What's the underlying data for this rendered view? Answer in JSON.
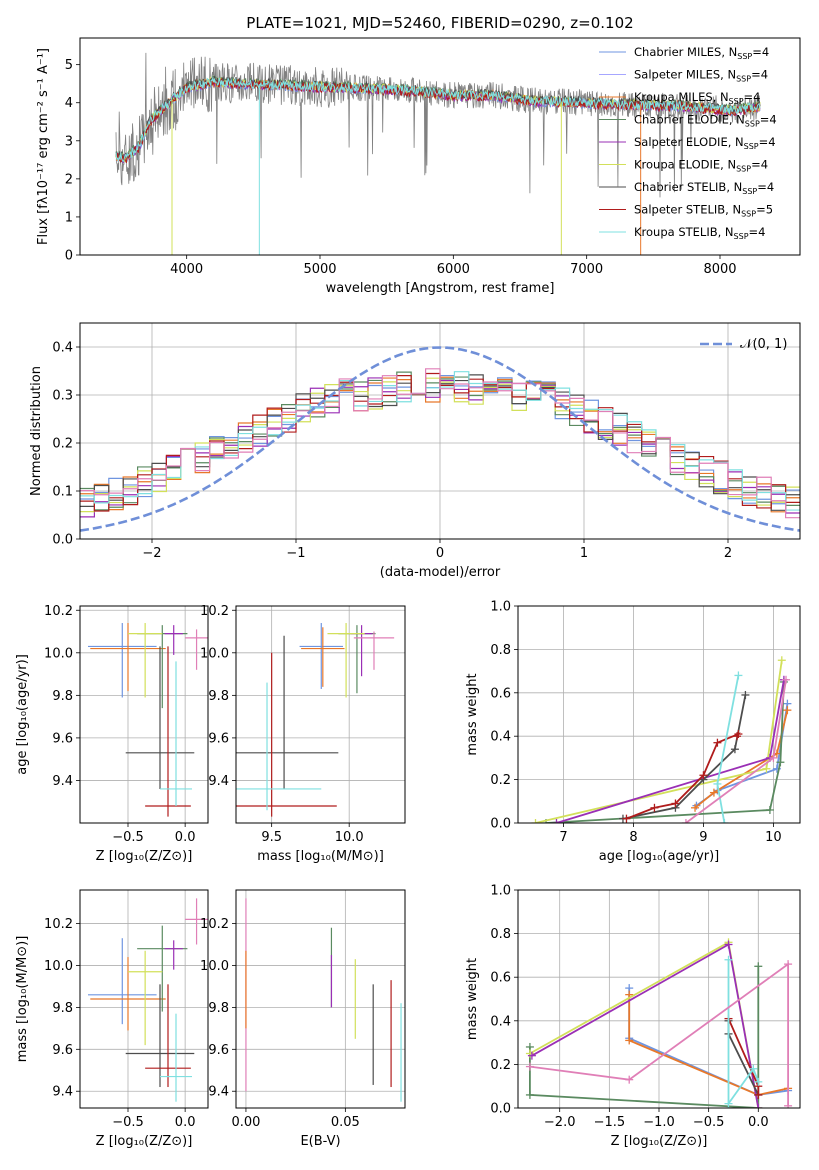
{
  "colors": {
    "Chabrier MILES": "#6f95e0",
    "Salpeter MILES": "#a6a6ff",
    "Kroupa MILES": "#e8782a",
    "Chabrier ELODIE": "#5a8a60",
    "Salpeter ELODIE": "#9a2fb5",
    "Kroupa ELODIE": "#d2e05a",
    "Chabrier STELIB": "#4d4d4d",
    "Salpeter STELIB": "#b01c1c",
    "Kroupa STELIB": "#7fe0e0",
    "pink": "#e07fb7",
    "gray": "#808080",
    "normal": "#6f8fd8"
  },
  "chart_data": [
    {
      "id": "spectrum",
      "type": "line",
      "title": "PLATE=1021, MJD=52460, FIBERID=0290, z=0.102",
      "xlabel": "wavelength [Angstrom, rest frame]",
      "ylabel": "Flux [fλ10⁻¹⁷ erg cm⁻² s⁻¹ A⁻¹]",
      "xlim": [
        3200,
        8600
      ],
      "ylim": [
        0,
        5.7
      ],
      "xticks": [
        4000,
        5000,
        6000,
        7000,
        8000
      ],
      "yticks": [
        0,
        1,
        2,
        3,
        4,
        5
      ],
      "legend_position": "right",
      "legend": [
        {
          "label": "Chabrier MILES, N",
          "sub": "SSP",
          "tail": "=4",
          "color_key": "Chabrier MILES"
        },
        {
          "label": "Salpeter MILES, N",
          "sub": "SSP",
          "tail": "=4",
          "color_key": "Salpeter MILES"
        },
        {
          "label": "Kroupa MILES, N",
          "sub": "SSP",
          "tail": "=4",
          "color_key": "Kroupa MILES"
        },
        {
          "label": "Chabrier ELODIE, N",
          "sub": "SSP",
          "tail": "=4",
          "color_key": "Chabrier ELODIE"
        },
        {
          "label": "Salpeter ELODIE, N",
          "sub": "SSP",
          "tail": "=4",
          "color_key": "Salpeter ELODIE"
        },
        {
          "label": "Kroupa ELODIE, N",
          "sub": "SSP",
          "tail": "=4",
          "color_key": "Kroupa ELODIE"
        },
        {
          "label": "Chabrier STELIB, N",
          "sub": "SSP",
          "tail": "=4",
          "color_key": "Chabrier STELIB"
        },
        {
          "label": "Salpeter STELIB, N",
          "sub": "SSP",
          "tail": "=5",
          "color_key": "Salpeter STELIB"
        },
        {
          "label": "Kroupa STELIB, N",
          "sub": "SSP",
          "tail": "=4",
          "color_key": "Kroupa STELIB"
        }
      ],
      "continuum": {
        "x": [
          3470,
          3550,
          3650,
          3720,
          3800,
          3900,
          4000,
          4200,
          4500,
          4800,
          5200,
          5600,
          6000,
          6300,
          6600,
          7000,
          7400,
          7800,
          8100,
          8300
        ],
        "y": [
          2.6,
          2.55,
          2.9,
          3.5,
          3.8,
          4.1,
          4.4,
          4.55,
          4.5,
          4.45,
          4.4,
          4.35,
          4.2,
          4.2,
          4.05,
          4.0,
          3.95,
          3.9,
          3.8,
          3.9
        ]
      },
      "data_wavelength_range": [
        3470,
        8300
      ]
    },
    {
      "id": "residuals",
      "type": "line",
      "xlabel": "(data-model)/error",
      "ylabel": "Normed distribution",
      "xlim": [
        -2.5,
        2.5
      ],
      "ylim": [
        0,
        0.45
      ],
      "xticks": [
        -2,
        -1,
        0,
        1,
        2
      ],
      "xticklabels": [
        "−2",
        "−1",
        "0",
        "1",
        "2"
      ],
      "yticks": [
        0.0,
        0.1,
        0.2,
        0.3,
        0.4
      ],
      "yticklabels": [
        "0.0",
        "0.1",
        "0.2",
        "0.3",
        "0.4"
      ],
      "legend": [
        {
          "label": "𝒩(0, 1)",
          "color_key": "normal",
          "style": "dashed"
        }
      ],
      "legend_position": "top-right",
      "bin_width": 0.1,
      "grid": true
    },
    {
      "id": "age-vs-Z",
      "type": "scatter",
      "xlabel": "Z [log₁₀(Z/Z⊙)]",
      "ylabel": "age  [log₁₀(age/yr)]",
      "xlim": [
        -0.92,
        0.2
      ],
      "ylim": [
        9.2,
        10.22
      ],
      "xticks": [
        -0.5,
        0.0
      ],
      "xticklabels": [
        "−0.5",
        "0.0"
      ],
      "yticks": [
        9.4,
        9.6,
        9.8,
        10.0,
        10.2
      ],
      "yticklabels": [
        "9.4",
        "9.6",
        "9.8",
        "10.0",
        "10.2"
      ],
      "grid": true,
      "points": [
        {
          "x": -0.55,
          "y": 10.03,
          "xerr": 0.3,
          "yerr": [
            0.24,
            0.11
          ],
          "color_key": "Chabrier MILES"
        },
        {
          "x": -0.5,
          "y": 10.02,
          "xerr": 0.33,
          "yerr": [
            0.2,
            0.12
          ],
          "color_key": "Kroupa MILES"
        },
        {
          "x": -0.2,
          "y": 10.09,
          "xerr": 0.22,
          "yerr": [
            0.35,
            0.04
          ],
          "color_key": "Chabrier ELODIE"
        },
        {
          "x": -0.1,
          "y": 10.09,
          "xerr": 0.08,
          "yerr": [
            0.1,
            0.04
          ],
          "color_key": "Salpeter ELODIE"
        },
        {
          "x": -0.35,
          "y": 10.09,
          "xerr": 0.15,
          "yerr": [
            0.3,
            0.05
          ],
          "color_key": "Kroupa ELODIE"
        },
        {
          "x": -0.22,
          "y": 9.53,
          "xerr": 0.3,
          "yerr": [
            0.17,
            0.5
          ],
          "color_key": "Chabrier STELIB"
        },
        {
          "x": -0.15,
          "y": 9.28,
          "xerr": 0.2,
          "yerr": [
            0.05,
            0.75
          ],
          "color_key": "Salpeter STELIB"
        },
        {
          "x": -0.08,
          "y": 9.36,
          "xerr": 0.14,
          "yerr": [
            0.08,
            0.6
          ],
          "color_key": "Kroupa STELIB"
        },
        {
          "x": 0.1,
          "y": 10.07,
          "xerr": 0.1,
          "yerr": [
            0.15,
            0.04
          ],
          "color_key": "pink"
        }
      ]
    },
    {
      "id": "age-vs-mass",
      "type": "scatter",
      "xlabel": "mass [log₁₀(M/M⊙)]",
      "ylabel": "",
      "xlim": [
        9.27,
        10.36
      ],
      "ylim": [
        9.2,
        10.22
      ],
      "xticks": [
        9.5,
        10.0
      ],
      "xticklabels": [
        "9.5",
        "10.0"
      ],
      "yticks": [
        9.4,
        9.6,
        9.8,
        10.0,
        10.2
      ],
      "yticklabels": [
        "9.4",
        "9.6",
        "9.8",
        "10.0",
        "10.2"
      ],
      "grid": true,
      "points": [
        {
          "x": 9.82,
          "y": 10.03,
          "xerr": 0.14,
          "yerr": [
            0.2,
            0.11
          ],
          "color_key": "Chabrier MILES"
        },
        {
          "x": 9.83,
          "y": 10.02,
          "xerr": 0.14,
          "yerr": [
            0.18,
            0.1
          ],
          "color_key": "Kroupa MILES"
        },
        {
          "x": 10.05,
          "y": 10.09,
          "xerr": 0.12,
          "yerr": [
            0.28,
            0.04
          ],
          "color_key": "Chabrier ELODIE"
        },
        {
          "x": 10.08,
          "y": 10.09,
          "xerr": 0.07,
          "yerr": [
            0.2,
            0.04
          ],
          "color_key": "Salpeter ELODIE"
        },
        {
          "x": 9.98,
          "y": 10.09,
          "xerr": 0.12,
          "yerr": [
            0.3,
            0.05
          ],
          "color_key": "Kroupa ELODIE"
        },
        {
          "x": 9.58,
          "y": 9.53,
          "xerr": 0.35,
          "yerr": [
            0.17,
            0.55
          ],
          "color_key": "Chabrier STELIB"
        },
        {
          "x": 9.5,
          "y": 9.28,
          "xerr": 0.42,
          "yerr": [
            0.05,
            0.72
          ],
          "color_key": "Salpeter STELIB"
        },
        {
          "x": 9.47,
          "y": 9.36,
          "xerr": 0.35,
          "yerr": [
            0.1,
            0.5
          ],
          "color_key": "Kroupa STELIB"
        },
        {
          "x": 10.16,
          "y": 10.07,
          "xerr": 0.13,
          "yerr": [
            0.15,
            0.03
          ],
          "color_key": "pink"
        }
      ]
    },
    {
      "id": "mass-weight-vs-age",
      "type": "line",
      "xlabel": "age  [log₁₀(age/yr)]",
      "ylabel": "mass weight",
      "xlim": [
        6.35,
        10.38
      ],
      "ylim": [
        0,
        1.0
      ],
      "xticks": [
        7,
        8,
        9,
        10
      ],
      "yticks": [
        0.0,
        0.2,
        0.4,
        0.6,
        0.8,
        1.0
      ],
      "yticklabels": [
        "0.0",
        "0.2",
        "0.4",
        "0.6",
        "0.8",
        "1.0"
      ],
      "grid": true,
      "series": [
        {
          "color_key": "Chabrier MILES",
          "x": [
            8.9,
            9.2,
            10.05,
            10.2
          ],
          "y": [
            0.08,
            0.15,
            0.25,
            0.55
          ]
        },
        {
          "color_key": "Kroupa MILES",
          "x": [
            8.88,
            9.15,
            10.05,
            10.2
          ],
          "y": [
            0.07,
            0.14,
            0.32,
            0.52
          ]
        },
        {
          "color_key": "Chabrier ELODIE",
          "x": [
            6.75,
            9.95,
            10.1,
            10.15
          ],
          "y": [
            0.0,
            0.06,
            0.28,
            0.65
          ]
        },
        {
          "color_key": "Kroupa ELODIE",
          "x": [
            6.6,
            9.9,
            10.12
          ],
          "y": [
            0.0,
            0.25,
            0.75
          ]
        },
        {
          "color_key": "Salpeter ELODIE",
          "x": [
            6.9,
            9.95,
            10.15
          ],
          "y": [
            0.0,
            0.3,
            0.66
          ]
        },
        {
          "color_key": "Chabrier STELIB",
          "x": [
            7.85,
            8.6,
            9.0,
            9.45,
            9.6
          ],
          "y": [
            0.02,
            0.07,
            0.2,
            0.34,
            0.59
          ]
        },
        {
          "color_key": "Salpeter STELIB",
          "x": [
            7.9,
            8.3,
            8.6,
            9.0,
            9.2,
            9.5,
            9.48
          ],
          "y": [
            0.02,
            0.07,
            0.09,
            0.22,
            0.37,
            0.41,
            0.4
          ]
        },
        {
          "color_key": "Kroupa STELIB",
          "x": [
            9.3,
            9.2,
            9.5
          ],
          "y": [
            0.0,
            0.18,
            0.68
          ]
        },
        {
          "color_key": "pink",
          "x": [
            8.75,
            10.0,
            10.18
          ],
          "y": [
            0.0,
            0.3,
            0.66
          ]
        }
      ]
    },
    {
      "id": "mass-vs-Z",
      "type": "scatter",
      "xlabel": "Z [log₁₀(Z/Z⊙)]",
      "ylabel": "mass [log₁₀(M/M⊙)]",
      "xlim": [
        -0.92,
        0.2
      ],
      "ylim": [
        9.32,
        10.36
      ],
      "xticks": [
        -0.5,
        0.0
      ],
      "xticklabels": [
        "−0.5",
        "0.0"
      ],
      "yticks": [
        9.4,
        9.6,
        9.8,
        10.0,
        10.2
      ],
      "yticklabels": [
        "9.4",
        "9.6",
        "9.8",
        "10.0",
        "10.2"
      ],
      "grid": true,
      "points": [
        {
          "x": -0.55,
          "y": 9.86,
          "xerr": 0.3,
          "yerr": [
            0.14,
            0.27
          ],
          "color_key": "Chabrier MILES"
        },
        {
          "x": -0.5,
          "y": 9.84,
          "xerr": 0.33,
          "yerr": [
            0.15,
            0.2
          ],
          "color_key": "Kroupa MILES"
        },
        {
          "x": -0.2,
          "y": 10.08,
          "xerr": 0.22,
          "yerr": [
            0.3,
            0.11
          ],
          "color_key": "Chabrier ELODIE"
        },
        {
          "x": -0.1,
          "y": 10.08,
          "xerr": 0.08,
          "yerr": [
            0.1,
            0.04
          ],
          "color_key": "Salpeter ELODIE"
        },
        {
          "x": -0.35,
          "y": 9.97,
          "xerr": 0.15,
          "yerr": [
            0.35,
            0.1
          ],
          "color_key": "Kroupa ELODIE"
        },
        {
          "x": -0.22,
          "y": 9.58,
          "xerr": 0.3,
          "yerr": [
            0.16,
            0.33
          ],
          "color_key": "Chabrier STELIB"
        },
        {
          "x": -0.15,
          "y": 9.51,
          "xerr": 0.2,
          "yerr": [
            0.09,
            0.4
          ],
          "color_key": "Salpeter STELIB"
        },
        {
          "x": -0.08,
          "y": 9.47,
          "xerr": 0.14,
          "yerr": [
            0.12,
            0.3
          ],
          "color_key": "Kroupa STELIB"
        },
        {
          "x": 0.1,
          "y": 10.22,
          "xerr": 0.1,
          "yerr": [
            0.12,
            0.1
          ],
          "color_key": "pink"
        }
      ]
    },
    {
      "id": "mass-vs-ebv",
      "type": "scatter",
      "xlabel": "E(B-V)",
      "ylabel": "",
      "xlim": [
        -0.005,
        0.08
      ],
      "ylim": [
        9.32,
        10.36
      ],
      "xticks": [
        0.0,
        0.05
      ],
      "xticklabels": [
        "0.00",
        "0.05"
      ],
      "yticks": [
        9.4,
        9.6,
        9.8,
        10.0,
        10.2
      ],
      "yticklabels": [
        "9.4",
        "9.6",
        "9.8",
        "10.0",
        "10.2"
      ],
      "grid": true,
      "points": [
        {
          "x": 0.0,
          "y": 10.0,
          "xerr": 0,
          "yerr": [
            0.6,
            0.32
          ],
          "color_key": "pink"
        },
        {
          "x": 0.0,
          "y": 9.85,
          "xerr": 0,
          "yerr": [
            0.15,
            0.22
          ],
          "color_key": "Kroupa MILES"
        },
        {
          "x": 0.043,
          "y": 10.0,
          "xerr": 0,
          "yerr": [
            0.2,
            0.18
          ],
          "color_key": "Chabrier ELODIE"
        },
        {
          "x": 0.043,
          "y": 9.95,
          "xerr": 0,
          "yerr": [
            0.15,
            0.1
          ],
          "color_key": "Salpeter ELODIE"
        },
        {
          "x": 0.055,
          "y": 9.85,
          "xerr": 0,
          "yerr": [
            0.2,
            0.18
          ],
          "color_key": "Kroupa ELODIE"
        },
        {
          "x": 0.064,
          "y": 9.65,
          "xerr": 0,
          "yerr": [
            0.22,
            0.26
          ],
          "color_key": "Chabrier STELIB"
        },
        {
          "x": 0.073,
          "y": 9.65,
          "xerr": 0,
          "yerr": [
            0.23,
            0.28
          ],
          "color_key": "Salpeter STELIB"
        },
        {
          "x": 0.078,
          "y": 9.6,
          "xerr": 0,
          "yerr": [
            0.25,
            0.22
          ],
          "color_key": "Kroupa STELIB"
        }
      ]
    },
    {
      "id": "mass-weight-vs-Z",
      "type": "line",
      "xlabel": "Z [log₁₀(Z/Z⊙)]",
      "ylabel": "mass weight",
      "xlim": [
        -2.42,
        0.42
      ],
      "ylim": [
        0,
        1.0
      ],
      "xticks": [
        -2.0,
        -1.5,
        -1.0,
        -0.5,
        0.0
      ],
      "xticklabels": [
        "−2.0",
        "−1.5",
        "−1.0",
        "−0.5",
        "0.0"
      ],
      "yticks": [
        0.0,
        0.2,
        0.4,
        0.6,
        0.8,
        1.0
      ],
      "yticklabels": [
        "0.0",
        "0.2",
        "0.4",
        "0.6",
        "0.8",
        "1.0"
      ],
      "grid": true,
      "series": [
        {
          "color_key": "Chabrier MILES",
          "x": [
            -1.3,
            -1.3,
            0.0,
            0.3
          ],
          "y": [
            0.55,
            0.32,
            0.06,
            0.08
          ]
        },
        {
          "color_key": "Kroupa MILES",
          "x": [
            -1.3,
            -1.3,
            0.0,
            0.3
          ],
          "y": [
            0.52,
            0.31,
            0.06,
            0.09
          ]
        },
        {
          "color_key": "Chabrier ELODIE",
          "x": [
            -2.3,
            -2.3,
            0.0,
            0.0
          ],
          "y": [
            0.28,
            0.06,
            0.0,
            0.65
          ]
        },
        {
          "color_key": "Kroupa ELODIE",
          "x": [
            -2.3,
            -0.3,
            0.0
          ],
          "y": [
            0.25,
            0.76,
            0.0
          ]
        },
        {
          "color_key": "Salpeter ELODIE",
          "x": [
            -2.28,
            -0.3,
            0.0
          ],
          "y": [
            0.24,
            0.75,
            0.0
          ]
        },
        {
          "color_key": "Chabrier STELIB",
          "x": [
            -0.3,
            -0.3,
            0.0
          ],
          "y": [
            0.4,
            0.34,
            0.06
          ]
        },
        {
          "color_key": "Salpeter STELIB",
          "x": [
            -0.3,
            0.0,
            0.0
          ],
          "y": [
            0.41,
            0.1,
            0.06
          ]
        },
        {
          "color_key": "Kroupa STELIB",
          "x": [
            -0.3,
            -0.3,
            -0.05,
            0.0
          ],
          "y": [
            0.68,
            0.02,
            0.18,
            0.12
          ]
        },
        {
          "color_key": "pink",
          "x": [
            -2.3,
            -1.3,
            0.3,
            0.3
          ],
          "y": [
            0.19,
            0.13,
            0.66,
            0.01
          ]
        }
      ]
    }
  ]
}
